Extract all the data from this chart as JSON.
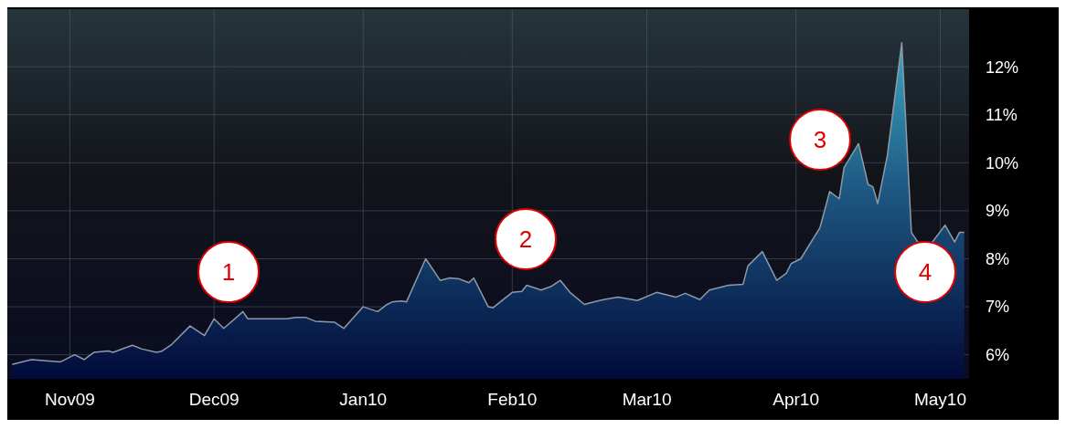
{
  "chart_data": {
    "type": "area",
    "x": [
      "2009-10-20",
      "2009-10-24",
      "2009-10-30",
      "2009-11-02",
      "2009-11-04",
      "2009-11-06",
      "2009-11-09",
      "2009-11-10",
      "2009-11-14",
      "2009-11-16",
      "2009-11-19",
      "2009-11-20",
      "2009-11-22",
      "2009-11-26",
      "2009-11-29",
      "2009-12-01",
      "2009-12-03",
      "2009-12-07",
      "2009-12-08",
      "2009-12-12",
      "2009-12-16",
      "2009-12-18",
      "2009-12-20",
      "2009-12-22",
      "2009-12-26",
      "2009-12-28",
      "2010-01-01",
      "2010-01-04",
      "2010-01-06",
      "2010-01-07",
      "2010-01-09",
      "2010-01-10",
      "2010-01-14",
      "2010-01-17",
      "2010-01-19",
      "2010-01-21",
      "2010-01-23",
      "2010-01-24",
      "2010-01-27",
      "2010-01-28",
      "2010-02-01",
      "2010-02-03",
      "2010-02-04",
      "2010-02-07",
      "2010-02-09",
      "2010-02-11",
      "2010-02-13",
      "2010-02-16",
      "2010-02-18",
      "2010-02-20",
      "2010-02-23",
      "2010-02-26",
      "2010-02-27",
      "2010-03-03",
      "2010-03-07",
      "2010-03-09",
      "2010-03-12",
      "2010-03-14",
      "2010-03-18",
      "2010-03-21",
      "2010-03-22",
      "2010-03-25",
      "2010-03-28",
      "2010-03-30",
      "2010-03-31",
      "2010-04-02",
      "2010-04-06",
      "2010-04-08",
      "2010-04-10",
      "2010-04-11",
      "2010-04-14",
      "2010-04-16",
      "2010-04-17",
      "2010-04-18",
      "2010-04-20",
      "2010-04-23",
      "2010-04-25",
      "2010-04-27",
      "2010-04-29",
      "2010-05-02",
      "2010-05-04",
      "2010-05-05",
      "2010-05-06"
    ],
    "series": [
      {
        "color": "#1d5680",
        "values": [
          5.8,
          5.9,
          5.85,
          6.0,
          5.9,
          6.05,
          6.08,
          6.05,
          6.2,
          6.12,
          6.05,
          6.07,
          6.2,
          6.6,
          6.4,
          6.75,
          6.55,
          6.9,
          6.75,
          6.75,
          6.75,
          6.78,
          6.78,
          6.7,
          6.68,
          6.55,
          7.0,
          6.9,
          7.05,
          7.1,
          7.12,
          7.1,
          8.0,
          7.55,
          7.6,
          7.58,
          7.5,
          7.6,
          7.0,
          6.98,
          7.3,
          7.32,
          7.45,
          7.35,
          7.42,
          7.55,
          7.3,
          7.05,
          7.1,
          7.15,
          7.2,
          7.15,
          7.13,
          7.3,
          7.2,
          7.28,
          7.15,
          7.35,
          7.45,
          7.47,
          7.85,
          8.15,
          7.55,
          7.7,
          7.9,
          8.0,
          8.65,
          9.4,
          9.25,
          9.9,
          10.4,
          9.55,
          9.5,
          9.15,
          10.15,
          12.5,
          8.55,
          8.25,
          8.3,
          8.7,
          8.35,
          8.55,
          8.55
        ]
      }
    ],
    "xlim": [
      "2009-10-19",
      "2010-05-07"
    ],
    "xticks": [
      {
        "value": "2009-11-01",
        "label": "Nov09"
      },
      {
        "value": "2009-12-01",
        "label": "Dec09"
      },
      {
        "value": "2010-01-01",
        "label": "Jan10"
      },
      {
        "value": "2010-02-01",
        "label": "Feb10"
      },
      {
        "value": "2010-03-01",
        "label": "Mar10"
      },
      {
        "value": "2010-04-01",
        "label": "Apr10"
      },
      {
        "value": "2010-05-01",
        "label": "May10"
      }
    ],
    "ylim": [
      5.5,
      13.2
    ],
    "yticks": [
      {
        "value": 6,
        "label": "6%"
      },
      {
        "value": 7,
        "label": "7%"
      },
      {
        "value": 8,
        "label": "8%"
      },
      {
        "value": 9,
        "label": "9%"
      },
      {
        "value": 10,
        "label": "10%"
      },
      {
        "value": 11,
        "label": "11%"
      },
      {
        "value": 12,
        "label": "12%"
      }
    ],
    "grid": true,
    "annotations": [
      "1",
      "2",
      "3",
      "4"
    ]
  }
}
